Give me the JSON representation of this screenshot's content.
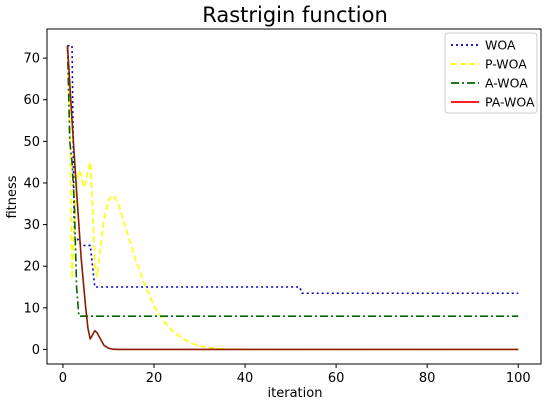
{
  "chart_data": {
    "type": "line",
    "title": "Rastrigin function",
    "xlabel": "iteration",
    "ylabel": "fitness",
    "xlim": [
      -3.5,
      105
    ],
    "ylim": [
      -3.5,
      77
    ],
    "xticks": [
      0,
      20,
      40,
      60,
      80,
      100
    ],
    "yticks": [
      0,
      10,
      20,
      30,
      40,
      50,
      60,
      70
    ],
    "grid": false,
    "legend_position": "top-right",
    "series": [
      {
        "name": "WOA",
        "color": "#0000cc",
        "style": "dotted",
        "x": [
          1,
          2,
          2.5,
          3,
          4,
          5,
          6,
          6.5,
          7,
          8,
          52,
          52.5,
          100
        ],
        "y": [
          73,
          73,
          27,
          27,
          25,
          25,
          25,
          20,
          15,
          15,
          15,
          13.5,
          13.5
        ]
      },
      {
        "name": "P-WOA",
        "color": "#ffff00",
        "style": "dashed",
        "x": [
          1,
          1.5,
          2,
          2.5,
          3,
          3.5,
          4,
          4.5,
          5,
          5.5,
          6,
          6.5,
          7,
          7.5,
          8,
          9,
          10,
          11,
          12,
          13,
          14,
          16,
          18,
          20,
          22,
          24,
          26,
          28,
          30,
          32,
          34,
          36,
          38,
          40,
          45,
          50,
          60,
          70,
          80,
          90,
          100
        ],
        "y": [
          73,
          58,
          17,
          30,
          39,
          43,
          42,
          39,
          40,
          43,
          45,
          35,
          20,
          17.5,
          22,
          31,
          36,
          37,
          35.5,
          32,
          28.5,
          21.5,
          15.5,
          10.5,
          7,
          4.5,
          2.8,
          1.6,
          0.8,
          0.4,
          0.2,
          0.1,
          0.05,
          0,
          0,
          0,
          0,
          0,
          0,
          0,
          0
        ]
      },
      {
        "name": "A-WOA",
        "color": "#006400",
        "style": "dashdot",
        "x": [
          1,
          1.5,
          2,
          2.5,
          3,
          3.5,
          100
        ],
        "y": [
          73,
          50,
          45,
          35,
          15,
          8,
          8
        ]
      },
      {
        "name": "PA-WOA",
        "color": "#8b1a00",
        "legend_color": "#ff0000",
        "style": "solid",
        "x": [
          1,
          2,
          3,
          4,
          5,
          5.5,
          6,
          6.5,
          7,
          7.5,
          8,
          8.5,
          9,
          10,
          11,
          12,
          15,
          20,
          30,
          40,
          60,
          80,
          100
        ],
        "y": [
          73,
          55,
          38,
          22,
          10,
          5,
          2.5,
          3.5,
          4.5,
          4,
          3,
          2,
          1,
          0.3,
          0.05,
          0,
          0,
          0,
          0,
          0,
          0,
          0,
          0
        ]
      }
    ]
  }
}
